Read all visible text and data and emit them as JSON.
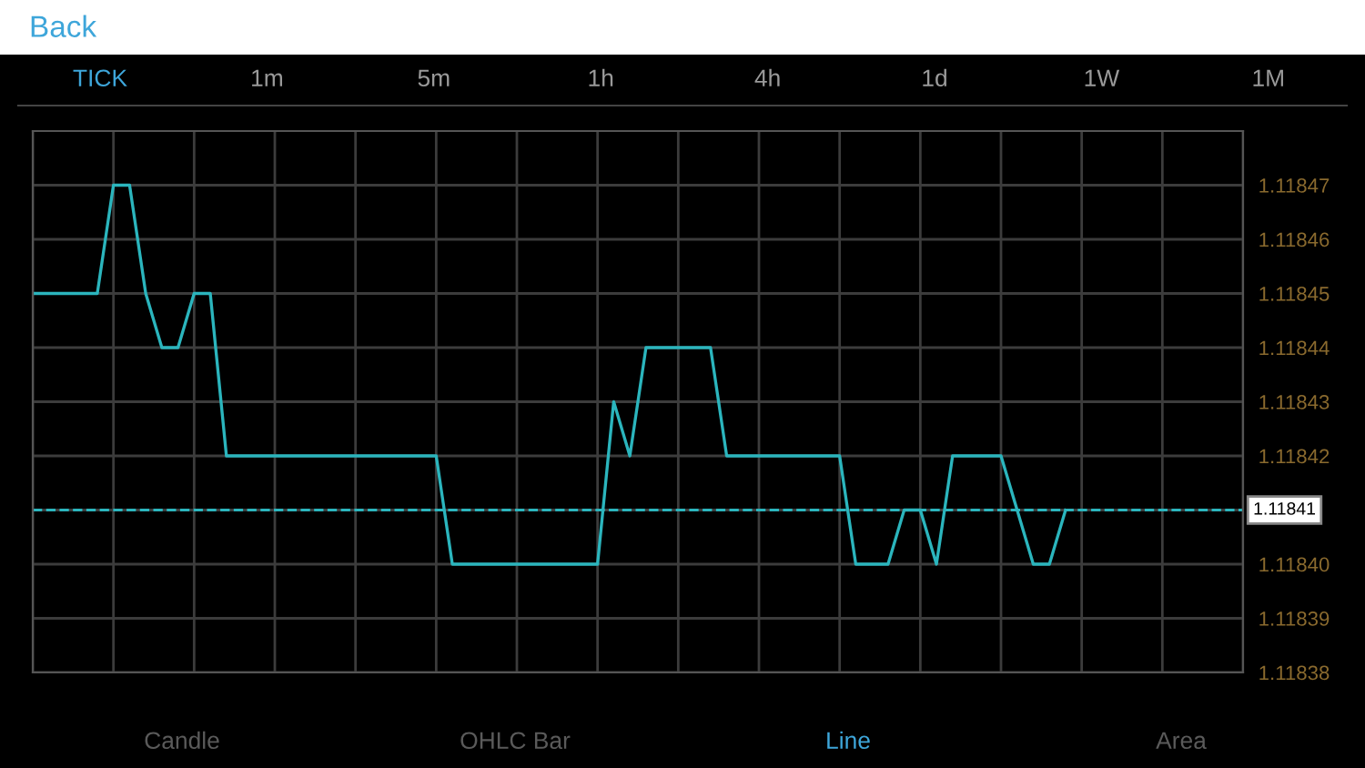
{
  "chart_data": {
    "type": "line",
    "categories": [
      null,
      null,
      null,
      null,
      null,
      null,
      null,
      null,
      null,
      null,
      null,
      null,
      null,
      null,
      null,
      null,
      null,
      null,
      null,
      null,
      null,
      null,
      null,
      null,
      null,
      null,
      null,
      null,
      null,
      null,
      null,
      null,
      null,
      null,
      null,
      null,
      null,
      null,
      null,
      null,
      null,
      null,
      null,
      null,
      null,
      null,
      null,
      null,
      null,
      null,
      null,
      null,
      null,
      null,
      null,
      null,
      null,
      null,
      null,
      null,
      null,
      null,
      null,
      null,
      null,
      null,
      null,
      null,
      null,
      null,
      null,
      null,
      null,
      null,
      null,
      null
    ],
    "series": [
      {
        "color": "#2bb5bd",
        "values": [
          1.11845,
          1.11845,
          1.11845,
          1.11845,
          1.11845,
          1.11847,
          1.11847,
          1.11845,
          1.11844,
          1.11844,
          1.11845,
          1.11845,
          1.11842,
          1.11842,
          1.11842,
          1.11842,
          1.11842,
          1.11842,
          1.11842,
          1.11842,
          1.11842,
          1.11842,
          1.11842,
          1.11842,
          1.11842,
          1.11842,
          1.1184,
          1.1184,
          1.1184,
          1.1184,
          1.1184,
          1.1184,
          1.1184,
          1.1184,
          1.1184,
          1.1184,
          1.11843,
          1.11842,
          1.11844,
          1.11844,
          1.11844,
          1.11844,
          1.11844,
          1.11842,
          1.11842,
          1.11842,
          1.11842,
          1.11842,
          1.11842,
          1.11842,
          1.11842,
          1.1184,
          1.1184,
          1.1184,
          1.11841,
          1.11841,
          1.1184,
          1.11842,
          1.11842,
          1.11842,
          1.11842,
          1.11841,
          1.1184,
          1.1184,
          1.11841,
          null,
          null,
          null,
          null,
          null,
          null,
          null,
          null,
          null,
          null,
          null
        ]
      }
    ],
    "ylim": [
      1.11838,
      1.11848
    ],
    "yticks": [
      1.11838,
      1.11839,
      {
        "value": 1.1184,
        "label": "1.11840"
      },
      {
        "value": 1.11841,
        "label": null
      },
      1.11842,
      1.11843,
      1.11844,
      1.11845,
      1.11846,
      1.11847
    ],
    "ref_lines": [
      {
        "axis": "y",
        "value": 1.11841,
        "label": "1.11841",
        "color": "#2bb5bd",
        "line_style": "dashed"
      }
    ],
    "grid": true,
    "tick_labels": "y",
    "marker": "none",
    "line_style": "solid",
    "annotations": [
      "Back",
      "TICK",
      "1m",
      "5m",
      "1h",
      "4h",
      "1d",
      "1W",
      "1M",
      "Candle",
      "OHLC Bar",
      "Line",
      "Area"
    ]
  }
}
